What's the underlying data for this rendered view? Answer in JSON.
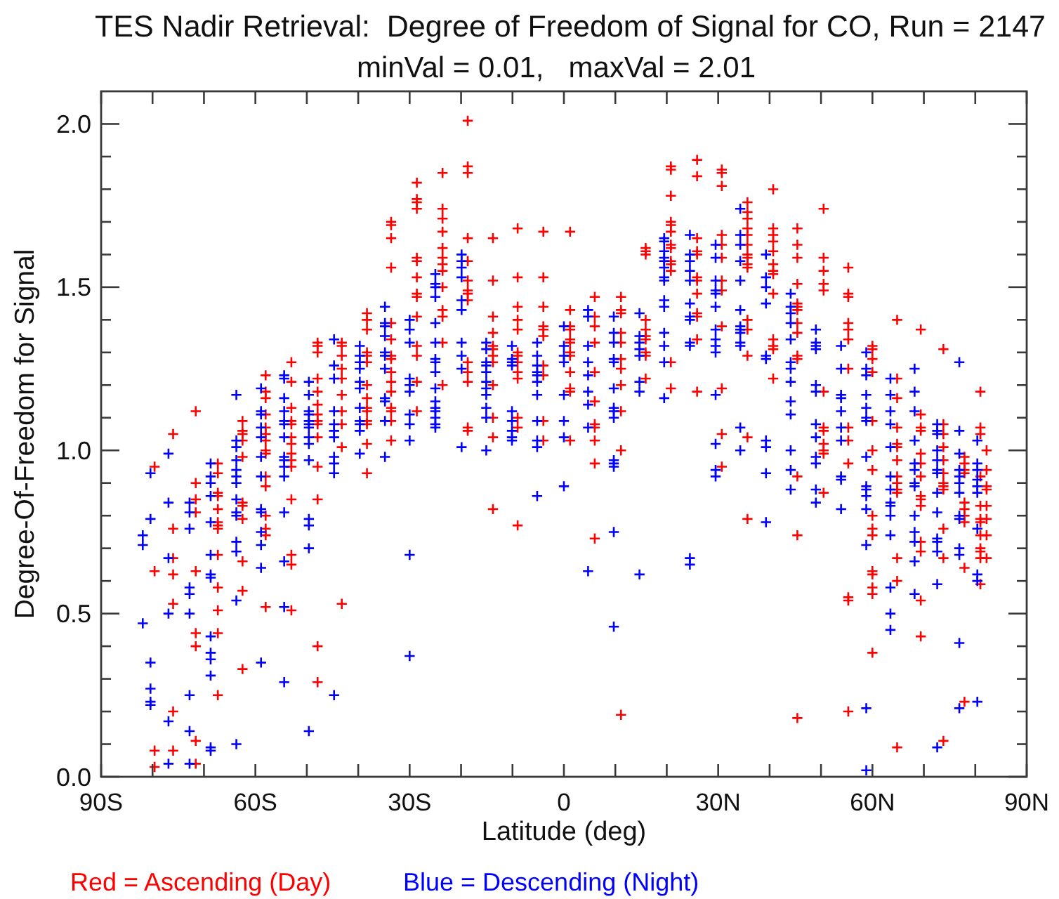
{
  "chart_data": {
    "type": "scatter",
    "title": "TES Nadir Retrieval:  Degree of Freedom of Signal for CO, Run = 2147",
    "subtitle": "minVal = 0.01,   maxVal = 2.01",
    "xlabel": "Latitude (deg)",
    "ylabel": "Degree-Of-Freedom for Signal",
    "xlim": [
      -90,
      90
    ],
    "ylim": [
      0,
      2.1
    ],
    "xticks": [
      {
        "value": -90,
        "label": "90S"
      },
      {
        "value": -80,
        "label": null
      },
      {
        "value": -70,
        "label": null
      },
      {
        "value": -60,
        "label": "60S"
      },
      {
        "value": -50,
        "label": null
      },
      {
        "value": -40,
        "label": null
      },
      {
        "value": -30,
        "label": "30S"
      },
      {
        "value": -20,
        "label": null
      },
      {
        "value": -10,
        "label": null
      },
      0,
      {
        "value": 10,
        "label": null
      },
      {
        "value": 20,
        "label": null
      },
      {
        "value": 30,
        "label": "30N"
      },
      {
        "value": 40,
        "label": null
      },
      {
        "value": 50,
        "label": null
      },
      {
        "value": 60,
        "label": "60N"
      },
      {
        "value": 70,
        "label": null
      },
      {
        "value": 80,
        "label": null
      },
      {
        "value": 90,
        "label": "90N"
      }
    ],
    "yticks": [
      {
        "value": 0,
        "label": "0.0"
      },
      {
        "value": 0.1,
        "label": null
      },
      {
        "value": 0.2,
        "label": null
      },
      {
        "value": 0.3,
        "label": null
      },
      {
        "value": 0.4,
        "label": null
      },
      0.5,
      {
        "value": 0.6,
        "label": null
      },
      {
        "value": 0.7,
        "label": null
      },
      {
        "value": 0.8,
        "label": null
      },
      {
        "value": 0.9,
        "label": null
      },
      {
        "value": 1,
        "label": "1.0"
      },
      {
        "value": 1.1,
        "label": null
      },
      {
        "value": 1.2,
        "label": null
      },
      {
        "value": 1.3,
        "label": null
      },
      {
        "value": 1.4,
        "label": null
      },
      1.5,
      {
        "value": 1.6,
        "label": null
      },
      {
        "value": 1.7,
        "label": null
      },
      {
        "value": 1.8,
        "label": null
      },
      {
        "value": 1.9,
        "label": null
      },
      {
        "value": 2,
        "label": "2.0"
      }
    ],
    "marker": "cross",
    "legend": "bottom",
    "series": [
      {
        "name": "Red = Ascending (Day)",
        "color": "#ff0000",
        "x": [
          -79.6,
          -79.6,
          -79.6,
          -79.6,
          -76,
          -76,
          -76,
          -76,
          -76,
          -76,
          -76,
          -71.6,
          -71.6,
          -71.6,
          -71.6,
          -71.6,
          -71.6,
          -71.6,
          -71.6,
          -71.6,
          -67.3,
          -67.3,
          -67.3,
          -67.3,
          -67.3,
          -67.3,
          -67.3,
          -67.3,
          -67.3,
          -67.3,
          -67.3,
          -67.3,
          -67.3,
          -62.5,
          -62.5,
          -62.5,
          -62.5,
          -62.5,
          -62.5,
          -62.5,
          -62.5,
          -62.5,
          -62.5,
          -62.5,
          -58,
          -58,
          -58,
          -58,
          -58,
          -58,
          -58,
          -58,
          -58,
          -58,
          -58,
          -58,
          -58,
          -58,
          -58,
          -53,
          -53,
          -53,
          -53,
          -53,
          -53,
          -53,
          -53,
          -53,
          -53,
          -53,
          -53,
          -53,
          -53,
          -47.9,
          -47.9,
          -47.9,
          -47.9,
          -47.9,
          -47.9,
          -47.9,
          -47.9,
          -47.9,
          -47.9,
          -47.9,
          -47.9,
          -47.9,
          -47.9,
          -43.2,
          -43.2,
          -43.2,
          -43.2,
          -43.2,
          -43.2,
          -43.2,
          -43.2,
          -43.2,
          -43.2,
          -38.3,
          -38.3,
          -38.3,
          -38.3,
          -38.3,
          -38.3,
          -38.3,
          -38.3,
          -38.3,
          -38.3,
          -38.3,
          -38.3,
          -38.3,
          -38.3,
          -33.6,
          -33.6,
          -33.6,
          -33.6,
          -33.6,
          -33.6,
          -33.6,
          -33.6,
          -33.6,
          -33.6,
          -33.6,
          -33.6,
          -33.6,
          -33.6,
          -33.6,
          -28.6,
          -28.6,
          -28.6,
          -28.6,
          -28.6,
          -28.6,
          -28.6,
          -28.6,
          -28.6,
          -28.6,
          -28.6,
          -28.6,
          -28.6,
          -28.6,
          -23.6,
          -23.6,
          -23.6,
          -23.6,
          -23.6,
          -23.6,
          -23.6,
          -23.6,
          -23.6,
          -23.6,
          -23.6,
          -23.6,
          -23.6,
          -18.7,
          -18.7,
          -18.7,
          -18.7,
          -18.7,
          -18.7,
          -18.7,
          -18.7,
          -18.7,
          -18.7,
          -18.7,
          -18.7,
          -18.7,
          -18.7,
          -13.8,
          -13.8,
          -13.8,
          -13.8,
          -13.8,
          -13.8,
          -13.8,
          -13.8,
          -13.8,
          -13.8,
          -13.8,
          -13.8,
          -9,
          -9,
          -9,
          -9,
          -9,
          -9,
          -9,
          -9,
          -9,
          -9,
          -9,
          -9,
          -9,
          -4,
          -4,
          -4,
          -4,
          -4,
          -4,
          -4,
          -4,
          -4,
          -4,
          1.2,
          1.2,
          1.2,
          1.2,
          1.2,
          1.2,
          1.2,
          1.2,
          1.2,
          1.2,
          1.2,
          1.2,
          6,
          6,
          6,
          6,
          6,
          6,
          6,
          6,
          6,
          6,
          6,
          11.1,
          11.1,
          11.1,
          11.1,
          11.1,
          11.1,
          11.1,
          11.1,
          11.1,
          11.1,
          11.1,
          15.9,
          15.9,
          15.9,
          15.9,
          15.9,
          15.9,
          15.9,
          15.9,
          15.9,
          15.9,
          20.8,
          20.8,
          20.8,
          20.8,
          20.8,
          20.8,
          20.8,
          20.8,
          20.8,
          20.8,
          20.8,
          20.8,
          20.8,
          25.9,
          25.9,
          25.9,
          25.9,
          25.9,
          25.9,
          25.9,
          25.9,
          25.9,
          25.9,
          25.9,
          25.9,
          30.7,
          30.7,
          30.7,
          30.7,
          30.7,
          30.7,
          30.7,
          30.7,
          30.7,
          30.7,
          30.7,
          30.7,
          35.7,
          35.7,
          35.7,
          35.7,
          35.7,
          35.7,
          35.7,
          35.7,
          35.7,
          35.7,
          35.7,
          35.7,
          35.7,
          35.7,
          35.7,
          40.7,
          40.7,
          40.7,
          40.7,
          40.7,
          40.7,
          40.7,
          40.7,
          40.7,
          40.7,
          40.7,
          40.7,
          40.7,
          45.4,
          45.4,
          45.4,
          45.4,
          45.4,
          45.4,
          45.4,
          45.4,
          45.4,
          45.4,
          45.4,
          45.4,
          45.4,
          45.4,
          50.5,
          50.5,
          50.5,
          50.5,
          50.5,
          50.5,
          50.5,
          50.5,
          50.5,
          50.5,
          50.5,
          50.5,
          55.3,
          55.3,
          55.3,
          55.3,
          55.3,
          55.3,
          55.3,
          55.3,
          55.3,
          55.3,
          55.3,
          55.3,
          55.3,
          60,
          60,
          60,
          60,
          60,
          60,
          60,
          60,
          60,
          60,
          60,
          60,
          60,
          60,
          60,
          64.8,
          64.8,
          64.8,
          64.8,
          64.8,
          64.8,
          64.8,
          64.8,
          64.8,
          64.8,
          64.8,
          64.8,
          64.8,
          64.8,
          69.4,
          69.4,
          69.4,
          69.4,
          69.4,
          69.4,
          69.4,
          69.4,
          69.4,
          69.4,
          69.4,
          69.4,
          69.4,
          69.4,
          73.8,
          73.8,
          73.8,
          73.8,
          73.8,
          73.8,
          73.8,
          73.8,
          73.8,
          73.8,
          73.8,
          73.8,
          77.9,
          77.9,
          77.9,
          77.9,
          77.9,
          77.9,
          77.9,
          77.9,
          77.9,
          77.9,
          81,
          81,
          81,
          81,
          81,
          81,
          81,
          81,
          81,
          81,
          81,
          81,
          82.2,
          82.2,
          82.2,
          82.2,
          82.2,
          82.2,
          82.2,
          82.2
        ],
        "values": [
          0.95,
          0.63,
          0.08,
          0.03,
          1.05,
          0.76,
          0.67,
          0.62,
          0.53,
          0.2,
          0.08,
          1.12,
          0.9,
          0.85,
          0.81,
          0.63,
          0.44,
          0.4,
          0.11,
          0.04,
          0.96,
          0.93,
          0.87,
          0.86,
          0.82,
          0.78,
          0.77,
          0.76,
          0.68,
          0.58,
          0.51,
          0.44,
          0.25,
          1.09,
          1.06,
          1.05,
          1.03,
          0.98,
          0.84,
          0.83,
          0.79,
          0.66,
          0.57,
          0.33,
          1.23,
          1.18,
          1.16,
          1.11,
          1.07,
          1.05,
          1.03,
          1,
          0.99,
          0.92,
          0.89,
          0.8,
          0.76,
          0.74,
          0.52,
          1.27,
          1.21,
          1.13,
          1.09,
          1.08,
          1.04,
          1.02,
          0.99,
          0.97,
          0.95,
          0.85,
          0.68,
          0.65,
          0.51,
          1.33,
          1.32,
          1.3,
          1.22,
          1.18,
          1.14,
          1.11,
          1.09,
          1.08,
          1.04,
          0.95,
          0.85,
          0.4,
          0.29,
          1.33,
          1.32,
          1.29,
          1.25,
          1.22,
          1.17,
          1.12,
          1.08,
          1.01,
          0.53,
          1.42,
          1.4,
          1.37,
          1.3,
          1.29,
          1.27,
          1.2,
          1.16,
          1.13,
          1.12,
          1.09,
          1.08,
          1.02,
          0.93,
          1.7,
          1.69,
          1.65,
          1.56,
          1.39,
          1.34,
          1.29,
          1.28,
          1.24,
          1.21,
          1.18,
          1.13,
          1.12,
          1.09,
          1.03,
          1.82,
          1.77,
          1.76,
          1.74,
          1.59,
          1.58,
          1.53,
          1.48,
          1.47,
          1.41,
          1.32,
          1.29,
          1.21,
          1.12,
          1.85,
          1.74,
          1.71,
          1.67,
          1.62,
          1.59,
          1.57,
          1.55,
          1.5,
          1.43,
          1.41,
          1.33,
          1.2,
          2.01,
          1.87,
          1.85,
          1.65,
          1.58,
          1.52,
          1.49,
          1.48,
          1.46,
          1.27,
          1.24,
          1.21,
          1.07,
          1.06,
          1.65,
          1.52,
          1.41,
          1.36,
          1.32,
          1.31,
          1.29,
          1.27,
          1.2,
          1.1,
          1.04,
          0.82,
          1.68,
          1.53,
          1.44,
          1.4,
          1.37,
          1.3,
          1.29,
          1.27,
          1.24,
          1.22,
          1.1,
          1.07,
          0.77,
          1.67,
          1.53,
          1.44,
          1.38,
          1.37,
          1.35,
          1.26,
          1.23,
          1.09,
          1.03,
          1.67,
          1.43,
          1.38,
          1.37,
          1.34,
          1.33,
          1.3,
          1.29,
          1.24,
          1.19,
          1.18,
          1.03,
          1.47,
          1.41,
          1.38,
          1.33,
          1.24,
          1.15,
          1.08,
          1.07,
          1.03,
          0.96,
          0.73,
          1.47,
          1.43,
          1.42,
          1.36,
          1.33,
          1.28,
          1.25,
          1.2,
          1.12,
          1,
          0.19,
          1.62,
          1.61,
          1.6,
          1.4,
          1.37,
          1.35,
          1.34,
          1.3,
          1.29,
          1.22,
          1.87,
          1.86,
          1.78,
          1.7,
          1.69,
          1.67,
          1.63,
          1.62,
          1.58,
          1.57,
          1.55,
          1.27,
          1.19,
          1.89,
          1.84,
          1.65,
          1.61,
          1.6,
          1.53,
          1.52,
          1.48,
          1.42,
          1.41,
          1.34,
          1.18,
          1.86,
          1.85,
          1.81,
          1.66,
          1.63,
          1.59,
          1.52,
          1.49,
          1.38,
          1.19,
          1.05,
          0.95,
          1.76,
          1.73,
          1.71,
          1.68,
          1.66,
          1.63,
          1.6,
          1.59,
          1.57,
          1.56,
          1.4,
          1.37,
          1.29,
          1.04,
          0.79,
          1.8,
          1.68,
          1.66,
          1.64,
          1.61,
          1.57,
          1.55,
          1.54,
          1.48,
          1.34,
          1.32,
          1.31,
          1.22,
          1.68,
          1.63,
          1.59,
          1.51,
          1.45,
          1.44,
          1.43,
          1.39,
          1.36,
          1.29,
          1.28,
          0.92,
          0.74,
          0.18,
          1.74,
          1.59,
          1.55,
          1.51,
          1.49,
          1.18,
          1.07,
          1.06,
          1.02,
          1,
          0.99,
          0.87,
          1.56,
          1.48,
          1.47,
          1.39,
          1.37,
          1.34,
          1.25,
          1.07,
          1.03,
          0.96,
          0.55,
          0.54,
          0.2,
          1.32,
          1.31,
          1.28,
          1.24,
          1.09,
          1,
          0.94,
          0.8,
          0.76,
          0.74,
          0.63,
          0.62,
          0.58,
          0.56,
          0.38,
          1.4,
          1.22,
          1.16,
          1.07,
          1.02,
          1.01,
          0.97,
          0.92,
          0.9,
          0.88,
          0.87,
          0.67,
          0.6,
          0.09,
          1.37,
          1.11,
          1.07,
          1.06,
          0.99,
          0.96,
          0.92,
          0.86,
          0.85,
          0.83,
          0.72,
          0.69,
          0.54,
          0.43,
          1.31,
          1.08,
          1.05,
          1.01,
          0.97,
          0.93,
          0.9,
          0.89,
          0.88,
          0.76,
          0.67,
          0.11,
          0.98,
          0.96,
          0.94,
          0.93,
          0.84,
          0.82,
          0.8,
          0.78,
          0.64,
          0.23,
          1.18,
          1.07,
          1.05,
          0.92,
          0.83,
          0.79,
          0.78,
          0.74,
          0.7,
          0.69,
          0.67,
          0.59,
          1,
          0.94,
          0.89,
          0.88,
          0.83,
          0.79,
          0.74,
          0.67
        ]
      },
      {
        "name": "Blue = Descending (Night)",
        "color": "#0000ff",
        "x": [
          -81.9,
          -81.9,
          -81.9,
          -80.4,
          -80.4,
          -80.4,
          -80.4,
          -80.4,
          -80.4,
          -76.9,
          -76.9,
          -76.9,
          -76.9,
          -76.9,
          -76.9,
          -72.8,
          -72.8,
          -72.8,
          -72.8,
          -72.8,
          -72.8,
          -72.8,
          -72.8,
          -72.8,
          -68.7,
          -68.7,
          -68.7,
          -68.7,
          -68.7,
          -68.7,
          -68.7,
          -68.7,
          -68.7,
          -68.7,
          -68.7,
          -68.7,
          -68.7,
          -68.7,
          -63.7,
          -63.7,
          -63.7,
          -63.7,
          -63.7,
          -63.7,
          -63.7,
          -63.7,
          -63.7,
          -63.7,
          -63.7,
          -63.7,
          -63.7,
          -63.7,
          -58.9,
          -58.9,
          -58.9,
          -58.9,
          -58.9,
          -58.9,
          -58.9,
          -58.9,
          -58.9,
          -58.9,
          -58.9,
          -58.9,
          -58.9,
          -54.4,
          -54.4,
          -54.4,
          -54.4,
          -54.4,
          -54.4,
          -54.4,
          -54.4,
          -54.4,
          -54.4,
          -54.4,
          -54.4,
          -54.4,
          -54.4,
          -54.4,
          -49.6,
          -49.6,
          -49.6,
          -49.6,
          -49.6,
          -49.6,
          -49.6,
          -49.6,
          -49.6,
          -49.6,
          -49.6,
          -49.6,
          -49.6,
          -49.6,
          -44.7,
          -44.7,
          -44.7,
          -44.7,
          -44.7,
          -44.7,
          -44.7,
          -44.7,
          -44.7,
          -44.7,
          -44.7,
          -39.7,
          -39.7,
          -39.7,
          -39.7,
          -39.7,
          -39.7,
          -39.7,
          -39.7,
          -39.7,
          -39.7,
          -39.7,
          -34.8,
          -34.8,
          -34.8,
          -34.8,
          -34.8,
          -34.8,
          -34.8,
          -34.8,
          -34.8,
          -34.8,
          -34.8,
          -30,
          -30,
          -30,
          -30,
          -30,
          -30,
          -30,
          -30,
          -30,
          -30,
          -30,
          -25,
          -25,
          -25,
          -25,
          -25,
          -25,
          -25,
          -25,
          -25,
          -25,
          -25,
          -25,
          -25,
          -25,
          -25,
          -25,
          -19.9,
          -19.9,
          -19.9,
          -19.9,
          -19.9,
          -19.9,
          -19.9,
          -19.9,
          -19.9,
          -19.9,
          -15.1,
          -15.1,
          -15.1,
          -15.1,
          -15.1,
          -15.1,
          -15.1,
          -15.1,
          -15.1,
          -15.1,
          -15.1,
          -10.1,
          -10.1,
          -10.1,
          -10.1,
          -10.1,
          -10.1,
          -10.1,
          -10.1,
          -10.1,
          -5.2,
          -5.2,
          -5.2,
          -5.2,
          -5.2,
          -5.2,
          -5.2,
          -5.2,
          -5.2,
          -5.2,
          -5.2,
          0,
          0,
          0,
          0,
          0,
          0,
          0,
          0,
          4.7,
          4.7,
          4.7,
          4.7,
          4.7,
          4.7,
          4.7,
          4.7,
          4.7,
          9.7,
          9.7,
          9.7,
          9.7,
          9.7,
          9.7,
          9.7,
          9.7,
          9.7,
          9.7,
          9.7,
          9.7,
          9.7,
          9.7,
          14.7,
          14.7,
          14.7,
          14.7,
          14.7,
          14.7,
          14.7,
          14.7,
          19.5,
          19.5,
          19.5,
          19.5,
          19.5,
          19.5,
          19.5,
          19.5,
          19.5,
          19.5,
          19.5,
          19.5,
          19.5,
          19.5,
          24.5,
          24.5,
          24.5,
          24.5,
          24.5,
          24.5,
          24.5,
          24.5,
          24.5,
          24.5,
          24.5,
          24.5,
          29.5,
          29.5,
          29.5,
          29.5,
          29.5,
          29.5,
          29.5,
          29.5,
          29.5,
          29.5,
          29.5,
          29.5,
          29.5,
          29.5,
          34.3,
          34.3,
          34.3,
          34.3,
          34.3,
          34.3,
          34.3,
          34.3,
          34.3,
          34.3,
          34.3,
          34.3,
          34.3,
          39.3,
          39.3,
          39.3,
          39.3,
          39.3,
          39.3,
          39.3,
          39.3,
          39.3,
          39.3,
          44.1,
          44.1,
          44.1,
          44.1,
          44.1,
          44.1,
          44.1,
          44.1,
          44.1,
          44.1,
          44.1,
          44.1,
          44.1,
          49,
          49,
          49,
          49,
          49,
          49,
          49,
          49,
          49,
          49,
          49,
          49,
          53.9,
          53.9,
          53.9,
          53.9,
          53.9,
          53.9,
          53.9,
          53.9,
          53.9,
          53.9,
          58.8,
          58.8,
          58.8,
          58.8,
          58.8,
          58.8,
          58.8,
          58.8,
          58.8,
          58.8,
          58.8,
          58.8,
          58.8,
          58.8,
          58.8,
          63.5,
          63.5,
          63.5,
          63.5,
          63.5,
          63.5,
          63.5,
          63.5,
          63.5,
          63.5,
          63.5,
          63.5,
          63.5,
          63.5,
          68.2,
          68.2,
          68.2,
          68.2,
          68.2,
          68.2,
          68.2,
          68.2,
          68.2,
          68.2,
          68.2,
          68.2,
          68.2,
          72.6,
          72.6,
          72.6,
          72.6,
          72.6,
          72.6,
          72.6,
          72.6,
          72.6,
          72.6,
          72.6,
          72.6,
          72.6,
          72.6,
          76.9,
          76.9,
          76.9,
          76.9,
          76.9,
          76.9,
          76.9,
          76.9,
          76.9,
          76.9,
          76.9,
          76.9,
          76.9,
          80.4,
          80.4,
          80.4,
          80.4,
          80.4,
          80.4,
          80.4,
          80.4,
          80.4,
          80.4
        ],
        "values": [
          0.74,
          0.71,
          0.47,
          0.93,
          0.79,
          0.35,
          0.27,
          0.23,
          0.22,
          0.99,
          0.84,
          0.67,
          0.5,
          0.17,
          0.04,
          0.84,
          0.81,
          0.76,
          0.58,
          0.56,
          0.5,
          0.25,
          0.14,
          0.04,
          0.96,
          0.92,
          0.9,
          0.86,
          0.78,
          0.68,
          0.62,
          0.61,
          0.43,
          0.38,
          0.36,
          0.31,
          0.09,
          0.08,
          1.17,
          1.03,
          1.01,
          0.97,
          0.94,
          0.92,
          0.9,
          0.85,
          0.81,
          0.8,
          0.72,
          0.69,
          0.54,
          0.1,
          1.19,
          1.12,
          1.11,
          1.07,
          1.04,
          0.98,
          0.92,
          0.82,
          0.81,
          0.75,
          0.71,
          0.64,
          0.35,
          1.23,
          1.22,
          1.16,
          1.12,
          1.09,
          1.08,
          1.04,
          0.98,
          0.97,
          0.95,
          0.92,
          0.81,
          0.66,
          0.52,
          0.29,
          1.21,
          1.17,
          1.12,
          1.11,
          1.09,
          1.08,
          1.07,
          1.04,
          1.02,
          0.97,
          0.79,
          0.77,
          0.7,
          0.14,
          1.34,
          1.26,
          1.22,
          1.12,
          1.08,
          1.06,
          1.04,
          0.98,
          0.96,
          0.93,
          0.25,
          1.32,
          1.29,
          1.27,
          1.25,
          1.21,
          1.19,
          1.13,
          1.09,
          1.08,
          1.06,
          0.99,
          1.44,
          1.39,
          1.38,
          1.35,
          1.3,
          1.29,
          1.25,
          1.16,
          1.15,
          1.09,
          0.98,
          1.4,
          1.37,
          1.33,
          1.22,
          1.2,
          1.18,
          1.11,
          1.08,
          1.03,
          0.68,
          0.37,
          1.54,
          1.51,
          1.5,
          1.47,
          1.39,
          1.33,
          1.28,
          1.27,
          1.24,
          1.19,
          1.15,
          1.13,
          1.12,
          1.1,
          1.08,
          1.07,
          1.6,
          1.58,
          1.56,
          1.53,
          1.46,
          1.43,
          1.33,
          1.29,
          1.25,
          1.01,
          1.33,
          1.31,
          1.27,
          1.26,
          1.24,
          1.21,
          1.19,
          1.17,
          1.13,
          1.1,
          1,
          1.32,
          1.28,
          1.27,
          1.26,
          1.12,
          1.09,
          1.06,
          1.04,
          1.03,
          1.33,
          1.29,
          1.26,
          1.24,
          1.23,
          1.21,
          1.17,
          1.09,
          1.03,
          1.01,
          0.86,
          1.38,
          1.32,
          1.29,
          1.27,
          1.17,
          1.09,
          1.04,
          0.89,
          1.43,
          1.41,
          1.32,
          1.27,
          1.23,
          1.18,
          1.14,
          1.07,
          0.63,
          1.41,
          1.36,
          1.33,
          1.28,
          1.27,
          1.19,
          1.13,
          1.12,
          1.1,
          0.97,
          0.96,
          0.95,
          0.75,
          0.46,
          1.42,
          1.35,
          1.33,
          1.31,
          1.29,
          1.21,
          1.18,
          0.62,
          1.65,
          1.64,
          1.61,
          1.59,
          1.58,
          1.56,
          1.53,
          1.52,
          1.46,
          1.44,
          1.36,
          1.32,
          1.27,
          1.16,
          1.66,
          1.6,
          1.58,
          1.55,
          1.52,
          1.45,
          1.41,
          1.4,
          1.33,
          1.32,
          0.67,
          0.65,
          1.63,
          1.59,
          1.52,
          1.49,
          1.48,
          1.44,
          1.37,
          1.34,
          1.32,
          1.3,
          1.17,
          1.02,
          0.94,
          0.92,
          1.74,
          1.66,
          1.63,
          1.58,
          1.52,
          1.43,
          1.38,
          1.37,
          1.36,
          1.33,
          1.32,
          1.07,
          1,
          1.6,
          1.53,
          1.5,
          1.45,
          1.29,
          1.28,
          1.03,
          1.01,
          0.93,
          0.78,
          1.48,
          1.44,
          1.42,
          1.39,
          1.34,
          1.27,
          1.25,
          1.21,
          1.15,
          1.11,
          1,
          0.94,
          0.88,
          1.37,
          1.33,
          1.32,
          1.31,
          1.2,
          1.18,
          1.08,
          1.04,
          0.98,
          0.96,
          0.88,
          0.84,
          1.32,
          1.25,
          1.17,
          1.16,
          1.12,
          1.07,
          1.03,
          0.92,
          0.91,
          0.82,
          1.3,
          1.25,
          1.23,
          1.17,
          1.13,
          1.1,
          1.09,
          0.98,
          0.89,
          0.88,
          0.86,
          0.82,
          0.71,
          0.21,
          0.02,
          1.22,
          1.17,
          1.12,
          1.08,
          1.01,
          0.92,
          0.88,
          0.84,
          0.83,
          0.8,
          0.74,
          0.58,
          0.5,
          0.45,
          1.25,
          1.18,
          1.12,
          1.03,
          0.96,
          0.94,
          0.9,
          0.89,
          0.8,
          0.75,
          0.72,
          0.66,
          0.56,
          1.08,
          1.06,
          1.05,
          1,
          0.97,
          0.94,
          0.93,
          0.87,
          0.81,
          0.73,
          0.72,
          0.69,
          0.59,
          0.09,
          1.27,
          1.06,
          0.99,
          0.94,
          0.92,
          0.9,
          0.87,
          0.8,
          0.79,
          0.7,
          0.68,
          0.41,
          0.21,
          1.03,
          0.96,
          0.94,
          0.91,
          0.89,
          0.87,
          0.76,
          0.62,
          0.6,
          0.23
        ]
      }
    ]
  }
}
